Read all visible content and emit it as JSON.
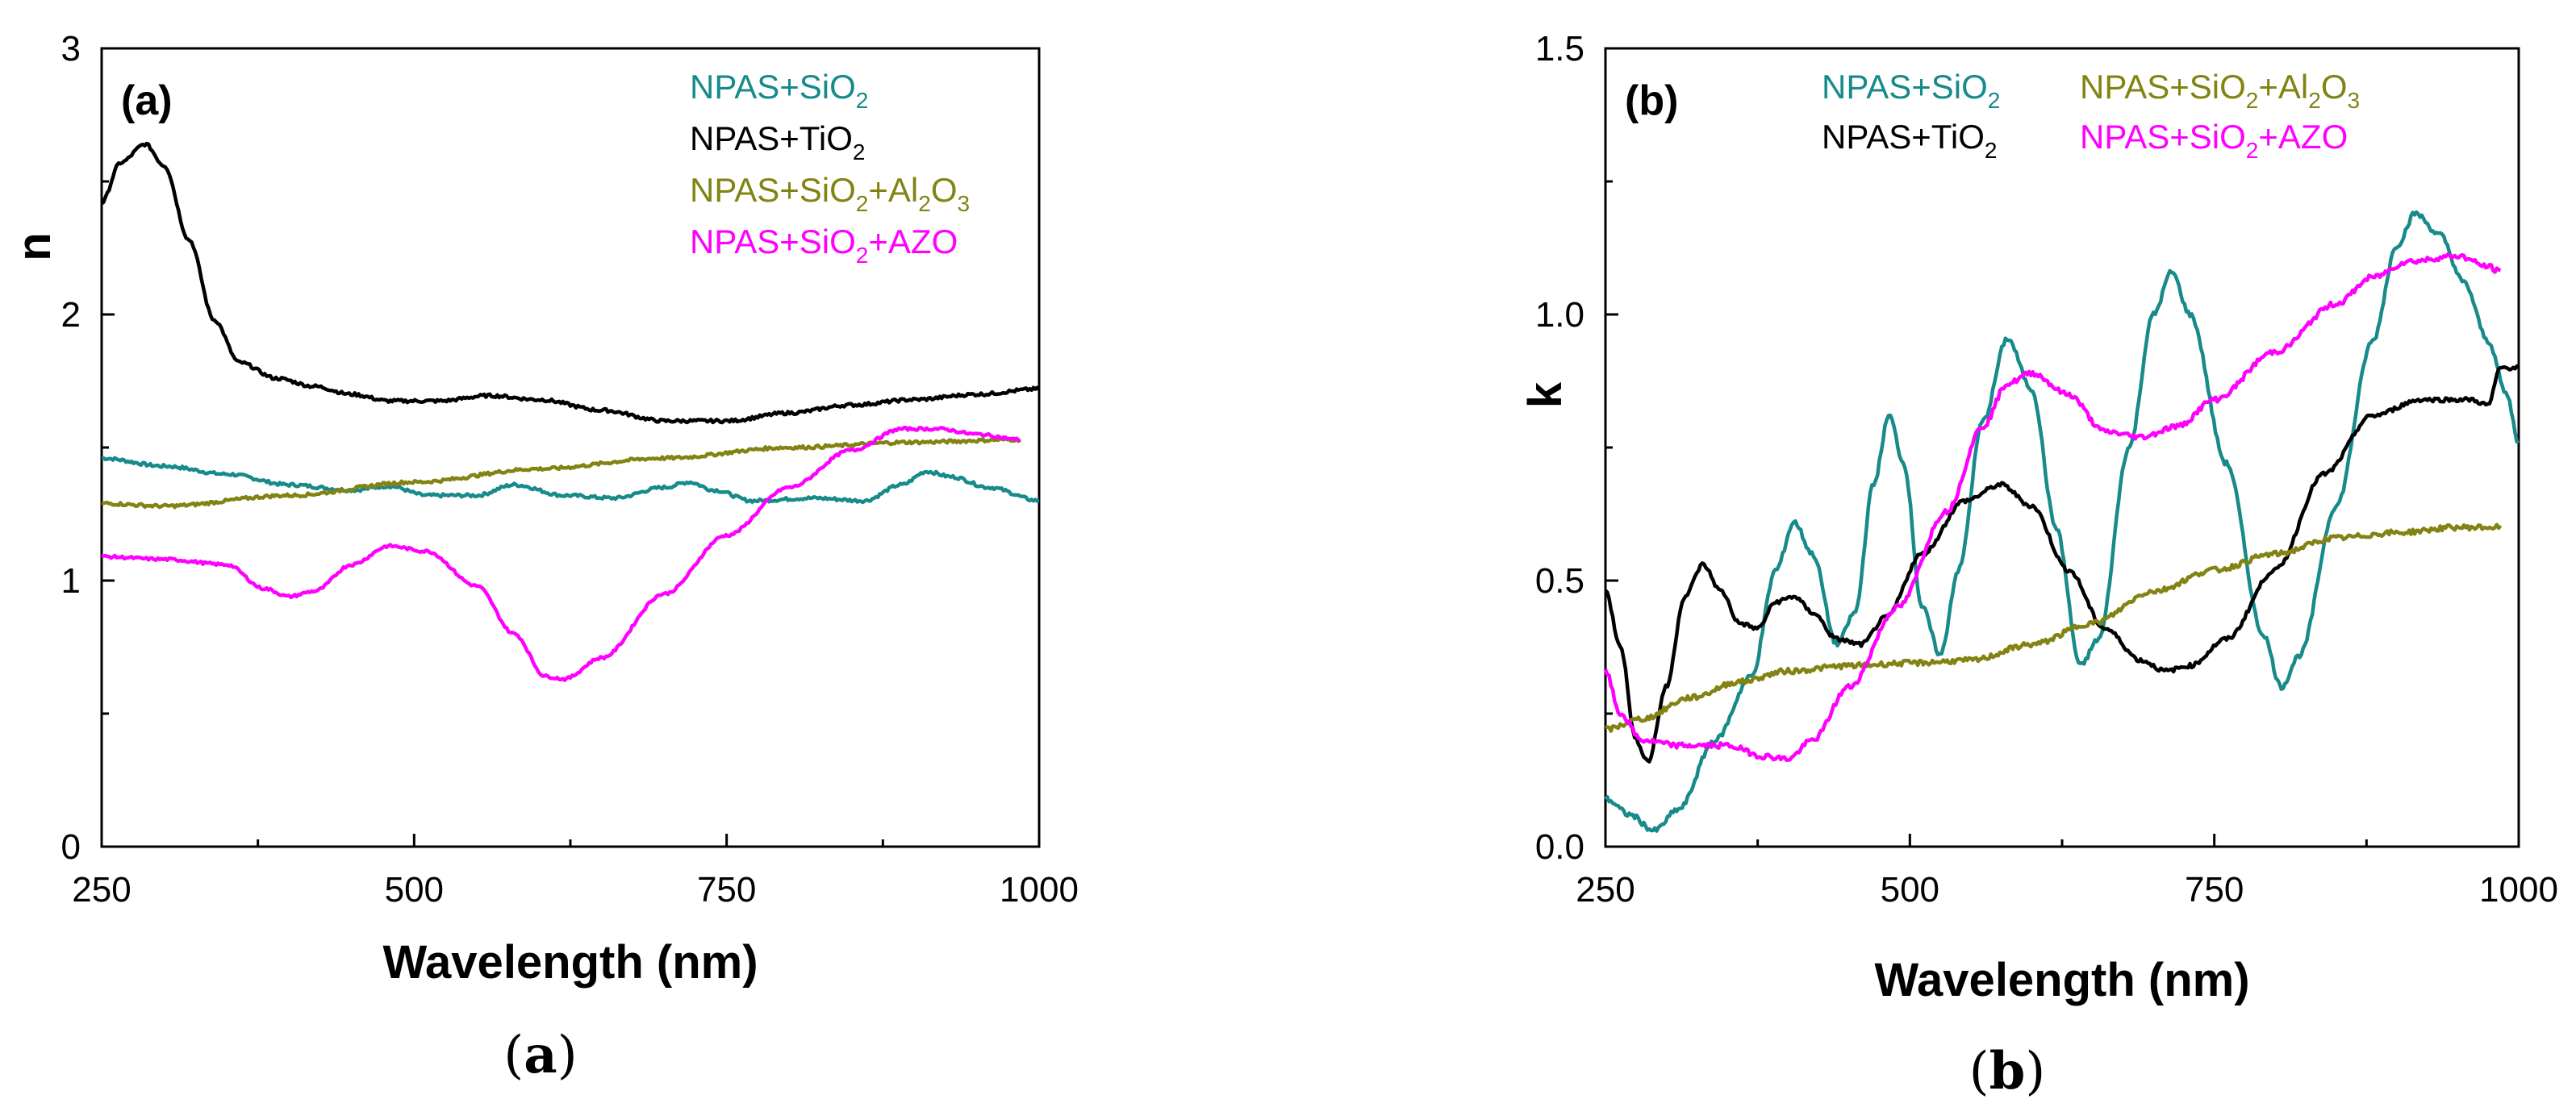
{
  "chart_data": [
    {
      "type": "line",
      "panel_label": "(a)",
      "caption": {
        "open": "(",
        "letter": "a",
        "close": ")"
      },
      "xlabel": "Wavelength (nm)",
      "ylabel": "n",
      "xlim": [
        250,
        1000
      ],
      "ylim": [
        0,
        3
      ],
      "xticks": [
        250,
        500,
        750,
        1000
      ],
      "yticks": [
        0,
        1,
        2,
        3
      ],
      "legend_position": "top-right",
      "series": [
        {
          "name": "NPAS+SiO2",
          "legend": {
            "parts": [
              [
                "NPAS+SiO",
                "n"
              ],
              [
                "2",
                "sub"
              ]
            ]
          },
          "color": "#178a8a",
          "noise": 0.006,
          "points": [
            [
              250,
              1.46
            ],
            [
              300,
              1.43
            ],
            [
              350,
              1.4
            ],
            [
              400,
              1.36
            ],
            [
              450,
              1.34
            ],
            [
              480,
              1.355
            ],
            [
              510,
              1.32
            ],
            [
              550,
              1.32
            ],
            [
              580,
              1.36
            ],
            [
              620,
              1.32
            ],
            [
              660,
              1.31
            ],
            [
              700,
              1.35
            ],
            [
              720,
              1.37
            ],
            [
              740,
              1.34
            ],
            [
              770,
              1.3
            ],
            [
              820,
              1.31
            ],
            [
              860,
              1.3
            ],
            [
              890,
              1.36
            ],
            [
              910,
              1.41
            ],
            [
              930,
              1.39
            ],
            [
              960,
              1.35
            ],
            [
              1000,
              1.3
            ]
          ]
        },
        {
          "name": "NPAS+TiO2",
          "legend": {
            "parts": [
              [
                "NPAS+TiO",
                "n"
              ],
              [
                "2",
                "sub"
              ]
            ]
          },
          "color": "#000000",
          "noise": 0.006,
          "points": [
            [
              250,
              2.42
            ],
            [
              265,
              2.57
            ],
            [
              285,
              2.64
            ],
            [
              300,
              2.56
            ],
            [
              320,
              2.28
            ],
            [
              340,
              1.98
            ],
            [
              360,
              1.82
            ],
            [
              390,
              1.76
            ],
            [
              420,
              1.73
            ],
            [
              450,
              1.7
            ],
            [
              480,
              1.675
            ],
            [
              520,
              1.675
            ],
            [
              560,
              1.695
            ],
            [
              600,
              1.68
            ],
            [
              650,
              1.64
            ],
            [
              700,
              1.6
            ],
            [
              750,
              1.6
            ],
            [
              800,
              1.63
            ],
            [
              850,
              1.66
            ],
            [
              900,
              1.68
            ],
            [
              950,
              1.7
            ],
            [
              1000,
              1.72
            ]
          ]
        },
        {
          "name": "NPAS+SiO2+Al2O3",
          "legend": {
            "parts": [
              [
                "NPAS+SiO",
                "n"
              ],
              [
                "2",
                "sub"
              ],
              [
                "+Al",
                "n"
              ],
              [
                "2",
                "sub"
              ],
              [
                "O",
                "n"
              ],
              [
                "3",
                "sub"
              ]
            ]
          },
          "color": "#838313",
          "noise": 0.006,
          "points": [
            [
              250,
              1.29
            ],
            [
              300,
              1.28
            ],
            [
              400,
              1.32
            ],
            [
              500,
              1.37
            ],
            [
              600,
              1.42
            ],
            [
              700,
              1.46
            ],
            [
              800,
              1.5
            ],
            [
              900,
              1.52
            ],
            [
              985,
              1.53
            ]
          ]
        },
        {
          "name": "NPAS+SiO2+AZO",
          "legend": {
            "parts": [
              [
                "NPAS+SiO",
                "n"
              ],
              [
                "2",
                "sub"
              ],
              [
                "+AZO",
                "n"
              ]
            ]
          },
          "color": "#ff00ff",
          "noise": 0.005,
          "points": [
            [
              250,
              1.09
            ],
            [
              300,
              1.08
            ],
            [
              350,
              1.06
            ],
            [
              380,
              0.97
            ],
            [
              400,
              0.94
            ],
            [
              420,
              0.96
            ],
            [
              450,
              1.06
            ],
            [
              480,
              1.13
            ],
            [
              510,
              1.11
            ],
            [
              550,
              0.98
            ],
            [
              580,
              0.8
            ],
            [
              605,
              0.64
            ],
            [
              620,
              0.63
            ],
            [
              650,
              0.71
            ],
            [
              700,
              0.95
            ],
            [
              750,
              1.17
            ],
            [
              800,
              1.35
            ],
            [
              850,
              1.49
            ],
            [
              890,
              1.57
            ],
            [
              920,
              1.57
            ],
            [
              950,
              1.55
            ],
            [
              985,
              1.53
            ]
          ]
        }
      ]
    },
    {
      "type": "line",
      "panel_label": "(b)",
      "caption": {
        "open": "(",
        "letter": "b",
        "close": ")"
      },
      "xlabel": "Wavelength (nm)",
      "ylabel": "k",
      "xlim": [
        250,
        1000
      ],
      "ylim": [
        0.0,
        1.5
      ],
      "xticks": [
        250,
        500,
        750,
        1000
      ],
      "yticks": [
        "0.0",
        "0.5",
        "1.0",
        "1.5"
      ],
      "legend_position": "top",
      "series": [
        {
          "name": "NPAS+SiO2",
          "legend": {
            "parts": [
              [
                "NPAS+SiO",
                "n"
              ],
              [
                "2",
                "sub"
              ]
            ]
          },
          "color": "#178a8a",
          "noise": 0.005,
          "points": [
            [
              250,
              0.09
            ],
            [
              270,
              0.06
            ],
            [
              290,
              0.03
            ],
            [
              310,
              0.07
            ],
            [
              340,
              0.2
            ],
            [
              370,
              0.32
            ],
            [
              390,
              0.52
            ],
            [
              405,
              0.61
            ],
            [
              420,
              0.55
            ],
            [
              440,
              0.38
            ],
            [
              455,
              0.44
            ],
            [
              470,
              0.68
            ],
            [
              483,
              0.81
            ],
            [
              495,
              0.72
            ],
            [
              510,
              0.45
            ],
            [
              525,
              0.36
            ],
            [
              540,
              0.52
            ],
            [
              560,
              0.8
            ],
            [
              580,
              0.955
            ],
            [
              600,
              0.86
            ],
            [
              620,
              0.6
            ],
            [
              640,
              0.34
            ],
            [
              655,
              0.39
            ],
            [
              680,
              0.75
            ],
            [
              700,
              1.0
            ],
            [
              715,
              1.08
            ],
            [
              730,
              1.0
            ],
            [
              760,
              0.72
            ],
            [
              790,
              0.4
            ],
            [
              805,
              0.3
            ],
            [
              820,
              0.36
            ],
            [
              850,
              0.64
            ],
            [
              880,
              0.95
            ],
            [
              900,
              1.13
            ],
            [
              915,
              1.19
            ],
            [
              935,
              1.15
            ],
            [
              955,
              1.06
            ],
            [
              975,
              0.95
            ],
            [
              990,
              0.85
            ],
            [
              1000,
              0.76
            ]
          ]
        },
        {
          "name": "NPAS+TiO2",
          "legend": {
            "parts": [
              [
                "NPAS+TiO",
                "n"
              ],
              [
                "2",
                "sub"
              ]
            ]
          },
          "color": "#000000",
          "noise": 0.004,
          "points": [
            [
              250,
              0.48
            ],
            [
              262,
              0.38
            ],
            [
              275,
              0.2
            ],
            [
              285,
              0.16
            ],
            [
              300,
              0.3
            ],
            [
              315,
              0.47
            ],
            [
              330,
              0.53
            ],
            [
              345,
              0.48
            ],
            [
              360,
              0.42
            ],
            [
              375,
              0.41
            ],
            [
              390,
              0.46
            ],
            [
              405,
              0.47
            ],
            [
              420,
              0.44
            ],
            [
              440,
              0.39
            ],
            [
              460,
              0.38
            ],
            [
              480,
              0.43
            ],
            [
              510,
              0.55
            ],
            [
              545,
              0.65
            ],
            [
              575,
              0.68
            ],
            [
              600,
              0.64
            ],
            [
              630,
              0.52
            ],
            [
              660,
              0.41
            ],
            [
              690,
              0.35
            ],
            [
              710,
              0.33
            ],
            [
              730,
              0.34
            ],
            [
              760,
              0.39
            ],
            [
              800,
              0.52
            ],
            [
              840,
              0.7
            ],
            [
              880,
              0.81
            ],
            [
              920,
              0.84
            ],
            [
              960,
              0.84
            ],
            [
              975,
              0.83
            ],
            [
              985,
              0.9
            ],
            [
              1000,
              0.9
            ]
          ]
        },
        {
          "name": "NPAS+SiO2+Al2O3",
          "legend": {
            "parts": [
              [
                "NPAS+SiO",
                "n"
              ],
              [
                "2",
                "sub"
              ],
              [
                "+Al",
                "n"
              ],
              [
                "2",
                "sub"
              ],
              [
                "O",
                "n"
              ],
              [
                "3",
                "sub"
              ]
            ]
          },
          "color": "#838313",
          "noise": 0.005,
          "points": [
            [
              250,
              0.22
            ],
            [
              280,
              0.24
            ],
            [
              320,
              0.28
            ],
            [
              360,
              0.31
            ],
            [
              400,
              0.33
            ],
            [
              450,
              0.34
            ],
            [
              500,
              0.345
            ],
            [
              550,
              0.35
            ],
            [
              600,
              0.38
            ],
            [
              650,
              0.42
            ],
            [
              700,
              0.48
            ],
            [
              750,
              0.52
            ],
            [
              800,
              0.55
            ],
            [
              850,
              0.58
            ],
            [
              900,
              0.59
            ],
            [
              950,
              0.6
            ],
            [
              985,
              0.6
            ]
          ]
        },
        {
          "name": "NPAS+SiO2+AZO",
          "legend": {
            "parts": [
              [
                "NPAS+SiO",
                "n"
              ],
              [
                "2",
                "sub"
              ],
              [
                "+AZO",
                "n"
              ]
            ]
          },
          "color": "#ff00ff",
          "noise": 0.005,
          "points": [
            [
              250,
              0.33
            ],
            [
              262,
              0.25
            ],
            [
              280,
              0.2
            ],
            [
              310,
              0.19
            ],
            [
              350,
              0.19
            ],
            [
              380,
              0.17
            ],
            [
              400,
              0.165
            ],
            [
              420,
              0.2
            ],
            [
              450,
              0.3
            ],
            [
              490,
              0.45
            ],
            [
              530,
              0.63
            ],
            [
              560,
              0.79
            ],
            [
              580,
              0.87
            ],
            [
              600,
              0.89
            ],
            [
              630,
              0.85
            ],
            [
              660,
              0.78
            ],
            [
              690,
              0.77
            ],
            [
              720,
              0.79
            ],
            [
              750,
              0.84
            ],
            [
              800,
              0.93
            ],
            [
              850,
              1.02
            ],
            [
              880,
              1.07
            ],
            [
              910,
              1.1
            ],
            [
              950,
              1.11
            ],
            [
              975,
              1.09
            ],
            [
              985,
              1.08
            ]
          ]
        }
      ]
    }
  ]
}
